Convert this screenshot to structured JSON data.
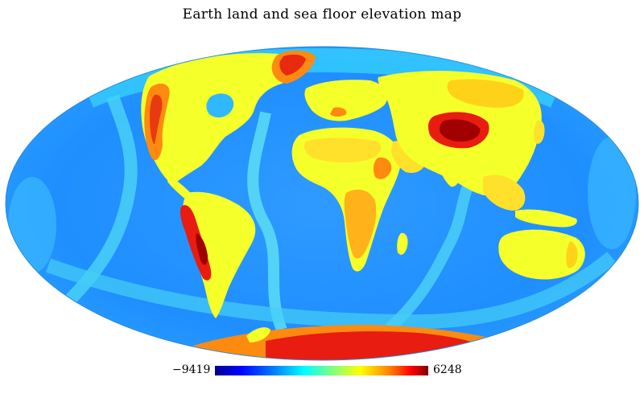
{
  "title": "Earth land and sea floor elevation map",
  "colorbar": {
    "min_label": "−9419",
    "max_label": "6248",
    "min": -9419,
    "max": 6248,
    "colors": [
      "#00008f",
      "#0000ff",
      "#0080ff",
      "#00ffff",
      "#80ff80",
      "#ffff00",
      "#ff8000",
      "#ff0000",
      "#800000"
    ]
  },
  "map": {
    "projection": "mollweide",
    "colors": {
      "deep_ocean": "#1e8cff",
      "ocean": "#2aa7ff",
      "shelf": "#38d0ff",
      "ridge": "#4be0f0",
      "lowland": "#f5ff2a",
      "upland": "#ffd21a",
      "highland": "#ff8a10",
      "mountain": "#e81c10",
      "peak": "#a00000"
    }
  }
}
